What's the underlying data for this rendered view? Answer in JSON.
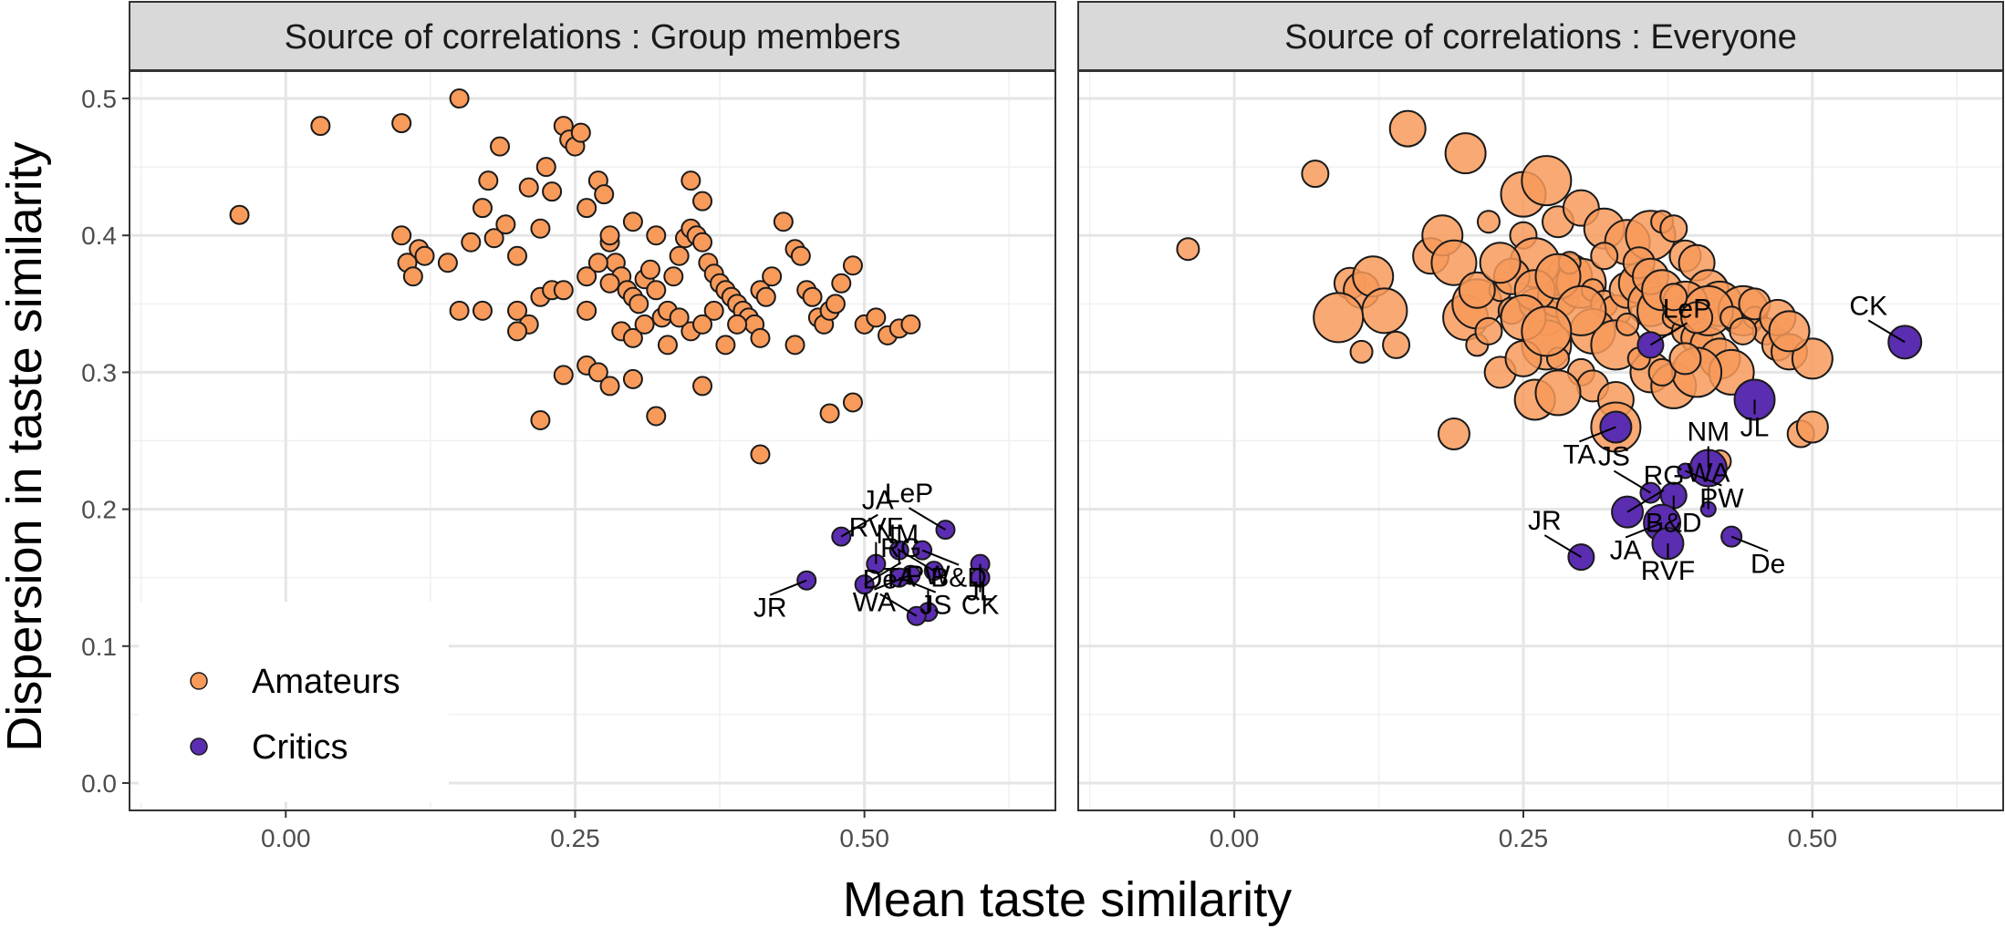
{
  "chart_data": {
    "type": "scatter",
    "xlabel": "Mean taste similarity",
    "ylabel": "Dispersion in taste similarity",
    "xlim": [
      -0.135,
      0.665
    ],
    "ylim": [
      -0.02,
      0.52
    ],
    "x_ticks": [
      0.0,
      0.25,
      0.5
    ],
    "x_tick_labels": [
      "0.00",
      "0.25",
      "0.50"
    ],
    "y_ticks": [
      0.0,
      0.1,
      0.2,
      0.3,
      0.4,
      0.5
    ],
    "y_tick_labels": [
      "0.0",
      "0.1",
      "0.2",
      "0.3",
      "0.4",
      "0.5"
    ],
    "grid": true,
    "legend": {
      "placement": "bottom-left",
      "entries": [
        {
          "label": "Amateurs",
          "color": "#F89A5A"
        },
        {
          "label": "Critics",
          "color": "#5B2DB0"
        }
      ]
    },
    "series_colors": {
      "Amateurs": "#F89A5A",
      "Critics": "#5B2DB0"
    },
    "panels": [
      {
        "title": "Source of correlations : Group members",
        "amateurs": [
          [
            -0.04,
            0.415
          ],
          [
            0.03,
            0.48
          ],
          [
            0.1,
            0.482
          ],
          [
            0.15,
            0.5
          ],
          [
            0.1,
            0.4
          ],
          [
            0.105,
            0.38
          ],
          [
            0.11,
            0.37
          ],
          [
            0.115,
            0.39
          ],
          [
            0.12,
            0.385
          ],
          [
            0.14,
            0.38
          ],
          [
            0.16,
            0.395
          ],
          [
            0.18,
            0.398
          ],
          [
            0.17,
            0.42
          ],
          [
            0.175,
            0.44
          ],
          [
            0.185,
            0.465
          ],
          [
            0.19,
            0.408
          ],
          [
            0.2,
            0.385
          ],
          [
            0.21,
            0.435
          ],
          [
            0.22,
            0.405
          ],
          [
            0.225,
            0.45
          ],
          [
            0.23,
            0.432
          ],
          [
            0.24,
            0.48
          ],
          [
            0.245,
            0.47
          ],
          [
            0.25,
            0.465
          ],
          [
            0.255,
            0.475
          ],
          [
            0.26,
            0.42
          ],
          [
            0.27,
            0.44
          ],
          [
            0.275,
            0.43
          ],
          [
            0.28,
            0.395
          ],
          [
            0.285,
            0.38
          ],
          [
            0.29,
            0.37
          ],
          [
            0.295,
            0.36
          ],
          [
            0.3,
            0.355
          ],
          [
            0.305,
            0.35
          ],
          [
            0.31,
            0.368
          ],
          [
            0.315,
            0.375
          ],
          [
            0.32,
            0.36
          ],
          [
            0.325,
            0.34
          ],
          [
            0.33,
            0.345
          ],
          [
            0.335,
            0.37
          ],
          [
            0.34,
            0.385
          ],
          [
            0.345,
            0.398
          ],
          [
            0.35,
            0.405
          ],
          [
            0.355,
            0.4
          ],
          [
            0.36,
            0.395
          ],
          [
            0.365,
            0.38
          ],
          [
            0.37,
            0.372
          ],
          [
            0.375,
            0.365
          ],
          [
            0.38,
            0.36
          ],
          [
            0.385,
            0.355
          ],
          [
            0.39,
            0.35
          ],
          [
            0.395,
            0.345
          ],
          [
            0.4,
            0.34
          ],
          [
            0.405,
            0.335
          ],
          [
            0.41,
            0.36
          ],
          [
            0.415,
            0.355
          ],
          [
            0.42,
            0.37
          ],
          [
            0.43,
            0.41
          ],
          [
            0.44,
            0.39
          ],
          [
            0.445,
            0.385
          ],
          [
            0.45,
            0.36
          ],
          [
            0.455,
            0.355
          ],
          [
            0.46,
            0.34
          ],
          [
            0.465,
            0.335
          ],
          [
            0.47,
            0.345
          ],
          [
            0.475,
            0.35
          ],
          [
            0.48,
            0.365
          ],
          [
            0.49,
            0.378
          ],
          [
            0.5,
            0.335
          ],
          [
            0.51,
            0.34
          ],
          [
            0.52,
            0.327
          ],
          [
            0.53,
            0.332
          ],
          [
            0.54,
            0.335
          ],
          [
            0.2,
            0.345
          ],
          [
            0.21,
            0.335
          ],
          [
            0.22,
            0.355
          ],
          [
            0.23,
            0.36
          ],
          [
            0.26,
            0.37
          ],
          [
            0.27,
            0.38
          ],
          [
            0.28,
            0.365
          ],
          [
            0.29,
            0.33
          ],
          [
            0.3,
            0.325
          ],
          [
            0.31,
            0.335
          ],
          [
            0.33,
            0.32
          ],
          [
            0.35,
            0.33
          ],
          [
            0.37,
            0.345
          ],
          [
            0.39,
            0.335
          ],
          [
            0.41,
            0.325
          ],
          [
            0.24,
            0.298
          ],
          [
            0.26,
            0.305
          ],
          [
            0.27,
            0.3
          ],
          [
            0.28,
            0.29
          ],
          [
            0.3,
            0.295
          ],
          [
            0.32,
            0.268
          ],
          [
            0.36,
            0.29
          ],
          [
            0.38,
            0.32
          ],
          [
            0.17,
            0.345
          ],
          [
            0.2,
            0.33
          ],
          [
            0.22,
            0.265
          ],
          [
            0.41,
            0.24
          ],
          [
            0.47,
            0.27
          ],
          [
            0.49,
            0.278
          ],
          [
            0.15,
            0.345
          ],
          [
            0.35,
            0.44
          ],
          [
            0.36,
            0.425
          ],
          [
            0.44,
            0.32
          ],
          [
            0.24,
            0.36
          ],
          [
            0.26,
            0.345
          ],
          [
            0.28,
            0.4
          ],
          [
            0.3,
            0.41
          ],
          [
            0.32,
            0.4
          ],
          [
            0.34,
            0.34
          ],
          [
            0.36,
            0.335
          ]
        ],
        "critics": [
          {
            "label": "LeP",
            "x": 0.57,
            "y": 0.185
          },
          {
            "label": "TA",
            "x": 0.53,
            "y": 0.17
          },
          {
            "label": "JA",
            "x": 0.48,
            "y": 0.18
          },
          {
            "label": "JR",
            "x": 0.45,
            "y": 0.148
          },
          {
            "label": "RVF",
            "x": 0.51,
            "y": 0.16
          },
          {
            "label": "B&D",
            "x": 0.55,
            "y": 0.17
          },
          {
            "label": "NM",
            "x": 0.56,
            "y": 0.155
          },
          {
            "label": "JL",
            "x": 0.6,
            "y": 0.16
          },
          {
            "label": "RG",
            "x": 0.5,
            "y": 0.145
          },
          {
            "label": "WA",
            "x": 0.54,
            "y": 0.152
          },
          {
            "label": "PW",
            "x": 0.555,
            "y": 0.125
          },
          {
            "label": "JS",
            "x": 0.53,
            "y": 0.15
          },
          {
            "label": "De",
            "x": 0.545,
            "y": 0.122
          },
          {
            "label": "CK",
            "x": 0.6,
            "y": 0.15
          }
        ]
      },
      {
        "title": "Source of correlations : Everyone",
        "amateurs": [
          [
            -0.04,
            0.39
          ],
          [
            0.07,
            0.445
          ],
          [
            0.1,
            0.365
          ],
          [
            0.11,
            0.36
          ],
          [
            0.12,
            0.37
          ],
          [
            0.13,
            0.345
          ],
          [
            0.09,
            0.34
          ],
          [
            0.11,
            0.315
          ],
          [
            0.14,
            0.32
          ],
          [
            0.19,
            0.255
          ],
          [
            0.15,
            0.478
          ],
          [
            0.2,
            0.46
          ],
          [
            0.25,
            0.43
          ],
          [
            0.27,
            0.44
          ],
          [
            0.22,
            0.41
          ],
          [
            0.25,
            0.4
          ],
          [
            0.28,
            0.41
          ],
          [
            0.3,
            0.42
          ],
          [
            0.32,
            0.405
          ],
          [
            0.34,
            0.395
          ],
          [
            0.36,
            0.4
          ],
          [
            0.37,
            0.41
          ],
          [
            0.38,
            0.405
          ],
          [
            0.39,
            0.385
          ],
          [
            0.4,
            0.38
          ],
          [
            0.41,
            0.36
          ],
          [
            0.42,
            0.35
          ],
          [
            0.44,
            0.345
          ],
          [
            0.45,
            0.34
          ],
          [
            0.46,
            0.33
          ],
          [
            0.47,
            0.32
          ],
          [
            0.48,
            0.315
          ],
          [
            0.5,
            0.31
          ],
          [
            0.2,
            0.34
          ],
          [
            0.21,
            0.35
          ],
          [
            0.23,
            0.36
          ],
          [
            0.24,
            0.345
          ],
          [
            0.26,
            0.35
          ],
          [
            0.27,
            0.34
          ],
          [
            0.28,
            0.355
          ],
          [
            0.29,
            0.37
          ],
          [
            0.3,
            0.365
          ],
          [
            0.31,
            0.36
          ],
          [
            0.32,
            0.35
          ],
          [
            0.33,
            0.345
          ],
          [
            0.34,
            0.36
          ],
          [
            0.35,
            0.365
          ],
          [
            0.36,
            0.35
          ],
          [
            0.37,
            0.345
          ],
          [
            0.38,
            0.34
          ],
          [
            0.39,
            0.33
          ],
          [
            0.4,
            0.325
          ],
          [
            0.41,
            0.32
          ],
          [
            0.42,
            0.31
          ],
          [
            0.43,
            0.3
          ],
          [
            0.27,
            0.32
          ],
          [
            0.28,
            0.31
          ],
          [
            0.3,
            0.3
          ],
          [
            0.31,
            0.29
          ],
          [
            0.33,
            0.28
          ],
          [
            0.36,
            0.3
          ],
          [
            0.38,
            0.29
          ],
          [
            0.4,
            0.3
          ],
          [
            0.21,
            0.32
          ],
          [
            0.22,
            0.33
          ],
          [
            0.23,
            0.3
          ],
          [
            0.25,
            0.31
          ],
          [
            0.26,
            0.28
          ],
          [
            0.28,
            0.285
          ],
          [
            0.33,
            0.26
          ],
          [
            0.42,
            0.235
          ],
          [
            0.49,
            0.255
          ],
          [
            0.5,
            0.26
          ],
          [
            0.17,
            0.385
          ],
          [
            0.18,
            0.4
          ],
          [
            0.19,
            0.38
          ],
          [
            0.26,
            0.38
          ],
          [
            0.29,
            0.38
          ],
          [
            0.32,
            0.385
          ],
          [
            0.35,
            0.38
          ],
          [
            0.36,
            0.37
          ],
          [
            0.37,
            0.36
          ],
          [
            0.39,
            0.35
          ],
          [
            0.41,
            0.345
          ],
          [
            0.43,
            0.34
          ],
          [
            0.44,
            0.33
          ],
          [
            0.45,
            0.35
          ],
          [
            0.47,
            0.34
          ],
          [
            0.48,
            0.33
          ],
          [
            0.31,
            0.33
          ],
          [
            0.33,
            0.32
          ],
          [
            0.35,
            0.31
          ],
          [
            0.37,
            0.3
          ],
          [
            0.39,
            0.31
          ],
          [
            0.24,
            0.37
          ],
          [
            0.26,
            0.36
          ],
          [
            0.28,
            0.37
          ],
          [
            0.3,
            0.345
          ],
          [
            0.34,
            0.335
          ],
          [
            0.38,
            0.355
          ],
          [
            0.4,
            0.34
          ],
          [
            0.21,
            0.36
          ],
          [
            0.23,
            0.38
          ],
          [
            0.25,
            0.34
          ],
          [
            0.27,
            0.33
          ]
        ],
        "critics": [
          {
            "label": "CK",
            "x": 0.58,
            "y": 0.322
          },
          {
            "label": "JL",
            "x": 0.45,
            "y": 0.28
          },
          {
            "label": "LeP",
            "x": 0.36,
            "y": 0.32
          },
          {
            "label": "TA",
            "x": 0.33,
            "y": 0.26
          },
          {
            "label": "NM",
            "x": 0.41,
            "y": 0.23
          },
          {
            "label": "PW",
            "x": 0.39,
            "y": 0.228
          },
          {
            "label": "JS",
            "x": 0.36,
            "y": 0.212
          },
          {
            "label": "B&D",
            "x": 0.38,
            "y": 0.21
          },
          {
            "label": "RG",
            "x": 0.34,
            "y": 0.198
          },
          {
            "label": "JA",
            "x": 0.37,
            "y": 0.19
          },
          {
            "label": "WA",
            "x": 0.41,
            "y": 0.2
          },
          {
            "label": "De",
            "x": 0.43,
            "y": 0.18
          },
          {
            "label": "JR",
            "x": 0.3,
            "y": 0.165
          },
          {
            "label": "RVF",
            "x": 0.375,
            "y": 0.175
          }
        ]
      }
    ]
  }
}
